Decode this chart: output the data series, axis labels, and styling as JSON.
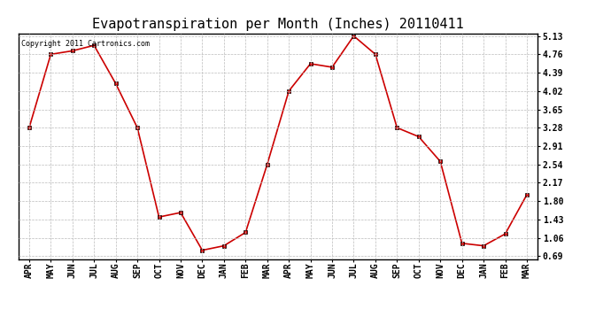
{
  "title": "Evapotranspiration per Month (Inches) 20110411",
  "copyright": "Copyright 2011 Cartronics.com",
  "months": [
    "APR",
    "MAY",
    "JUN",
    "JUL",
    "AUG",
    "SEP",
    "OCT",
    "NOV",
    "DEC",
    "JAN",
    "FEB",
    "MAR",
    "APR",
    "MAY",
    "JUN",
    "JUL",
    "AUG",
    "SEP",
    "OCT",
    "NOV",
    "DEC",
    "JAN",
    "FEB",
    "MAR"
  ],
  "values": [
    3.28,
    4.76,
    4.83,
    4.94,
    4.17,
    3.28,
    1.48,
    1.57,
    0.81,
    0.9,
    1.17,
    2.54,
    4.02,
    4.57,
    4.5,
    5.13,
    4.76,
    3.28,
    3.1,
    2.6,
    0.95,
    0.9,
    1.14,
    1.93
  ],
  "yticks": [
    0.69,
    1.06,
    1.43,
    1.8,
    2.17,
    2.54,
    2.91,
    3.28,
    3.65,
    4.02,
    4.39,
    4.76,
    5.13
  ],
  "line_color": "#cc0000",
  "marker": "s",
  "marker_size": 3,
  "bg_color": "#ffffff",
  "plot_bg_color": "#ffffff",
  "grid_color": "#bbbbbb",
  "title_fontsize": 11,
  "copyright_fontsize": 6,
  "tick_fontsize": 7,
  "ytick_fontsize": 7
}
